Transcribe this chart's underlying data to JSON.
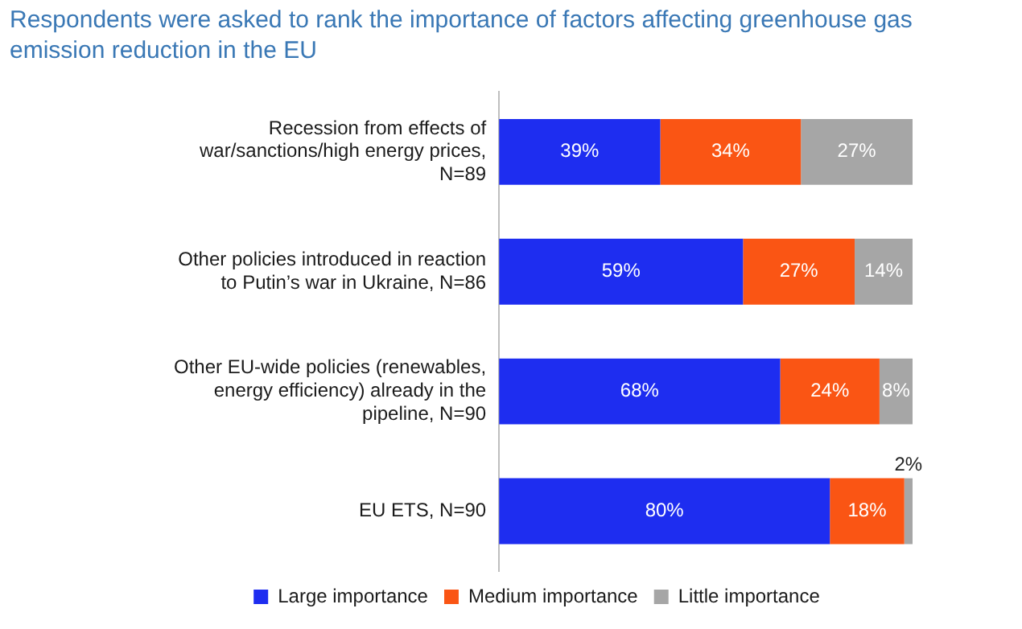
{
  "chart_data": {
    "type": "bar",
    "orientation": "horizontal",
    "stacked": true,
    "title": "Respondents were asked to rank the importance of factors affecting greenhouse gas emission reduction in the EU",
    "categories": [
      "Recession from effects of war/sanctions/high energy prices, N=89",
      "Other policies introduced in reaction to Putin’s war in Ukraine, N=86",
      "Other EU-wide policies (renewables, energy efficiency) already in the pipeline, N=90",
      "EU ETS, N=90"
    ],
    "series": [
      {
        "name": "Large importance",
        "color": "#1e2df0",
        "values": [
          39,
          59,
          68,
          80
        ],
        "value_labels": [
          "39%",
          "59%",
          "68%",
          "80%"
        ]
      },
      {
        "name": "Medium importance",
        "color": "#fa5514",
        "values": [
          34,
          27,
          24,
          18
        ],
        "value_labels": [
          "34%",
          "27%",
          "24%",
          "18%"
        ]
      },
      {
        "name": "Little importance",
        "color": "#a6a6a6",
        "values": [
          27,
          14,
          8,
          2
        ],
        "value_labels": [
          "27%",
          "14%",
          "8%",
          "2%"
        ]
      }
    ],
    "tick_labels": "y",
    "grid": false,
    "legend": "bottom"
  }
}
